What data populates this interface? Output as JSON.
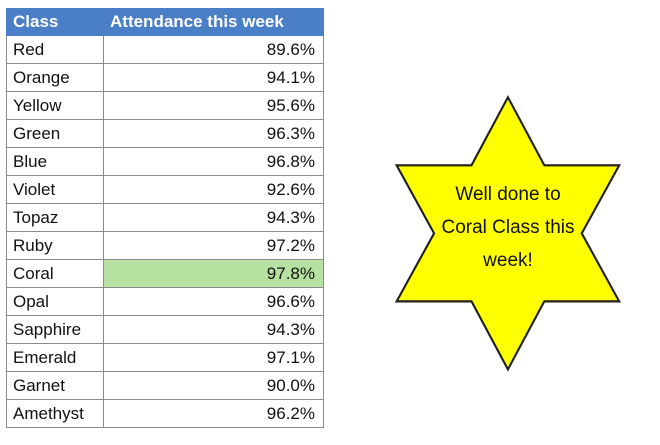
{
  "table": {
    "headers": [
      "Class",
      "Attendance this week"
    ],
    "rows": [
      {
        "class": "Red",
        "attendance": "89.6%"
      },
      {
        "class": "Orange",
        "attendance": "94.1%"
      },
      {
        "class": "Yellow",
        "attendance": "95.6%"
      },
      {
        "class": "Green",
        "attendance": "96.3%"
      },
      {
        "class": "Blue",
        "attendance": "96.8%"
      },
      {
        "class": "Violet",
        "attendance": "92.6%"
      },
      {
        "class": "Topaz",
        "attendance": "94.3%"
      },
      {
        "class": "Ruby",
        "attendance": "97.2%"
      },
      {
        "class": "Coral",
        "attendance": "97.8%",
        "highlighted": true
      },
      {
        "class": "Opal",
        "attendance": "96.6%"
      },
      {
        "class": "Sapphire",
        "attendance": "94.3%"
      },
      {
        "class": "Emerald",
        "attendance": "97.1%"
      },
      {
        "class": "Garnet",
        "attendance": "90.0%"
      },
      {
        "class": "Amethyst",
        "attendance": "96.2%"
      }
    ]
  },
  "callout": {
    "lines": [
      "Well done to",
      "Coral Class this",
      "week!"
    ]
  },
  "colors": {
    "header_bg": "#4a7ec6",
    "highlight": "#b6e1a1",
    "star_fill": "#ffff00"
  }
}
